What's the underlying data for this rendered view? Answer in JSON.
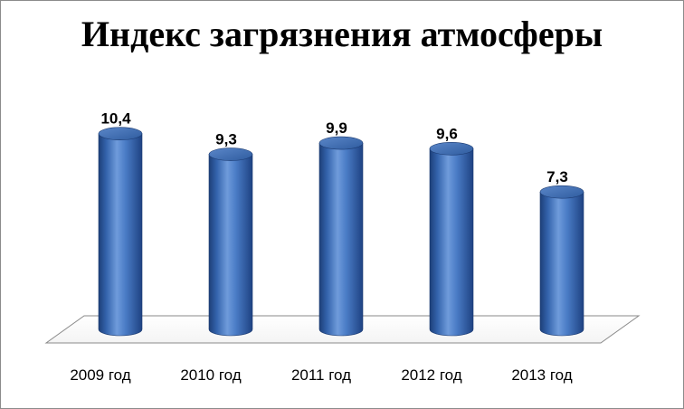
{
  "chart_data": {
    "type": "bar",
    "title": "Индекс загрязнения атмосферы",
    "categories": [
      "2009 год",
      "2010 год",
      "2011 год",
      "2012 год",
      "2013 год"
    ],
    "values": [
      10.4,
      9.3,
      9.9,
      9.6,
      7.3
    ],
    "value_labels": [
      "10,4",
      "9,3",
      "9,9",
      "9,6",
      "7,3"
    ],
    "bar_shape": "cylinder",
    "bar_color": "#3a6bb8",
    "ylim": [
      0,
      12
    ],
    "grid": false,
    "legend": "none"
  }
}
